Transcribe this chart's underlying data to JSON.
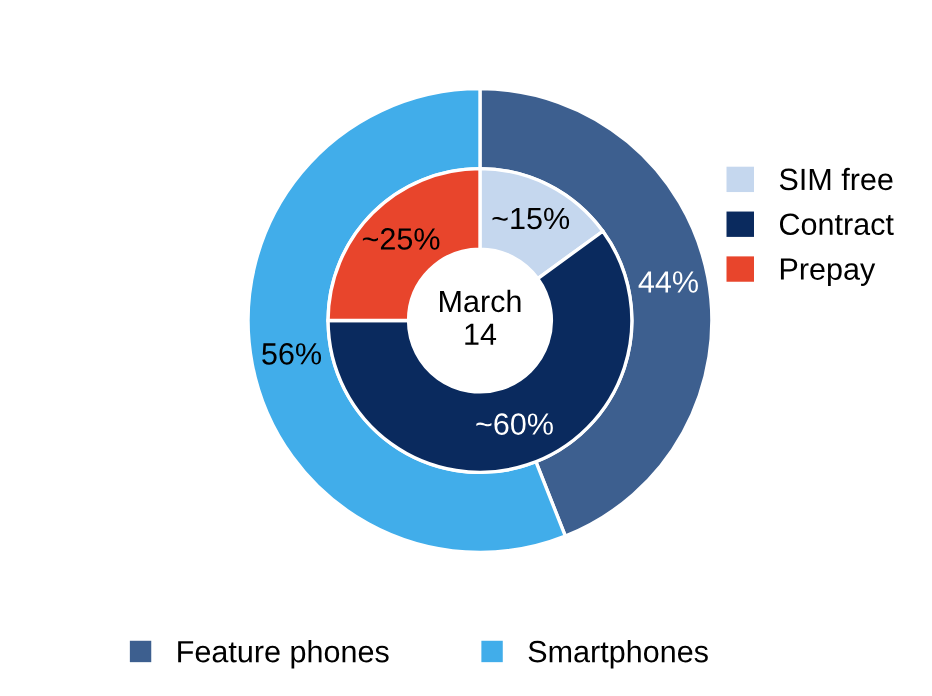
{
  "chart_data": {
    "type": "donut",
    "annotations": [
      "March\n14"
    ],
    "legend": "bottom",
    "categories": [
      "Feature phones",
      "Smartphones",
      "SIM free",
      "Contract",
      "Prepay"
    ],
    "colors": [
      "#3d5f8f",
      "#41adea",
      "#c5d7ee",
      "#0a2a5e",
      "#e8452c"
    ],
    "series": [
      {
        "values": [
          44,
          56,
          null,
          null,
          null
        ],
        "value_labels": [
          "44%",
          "56%",
          null,
          null,
          null
        ]
      },
      {
        "values": [
          null,
          null,
          15,
          60,
          25
        ],
        "value_labels": [
          null,
          null,
          "~15%",
          "~60%",
          "~25%"
        ]
      }
    ]
  }
}
